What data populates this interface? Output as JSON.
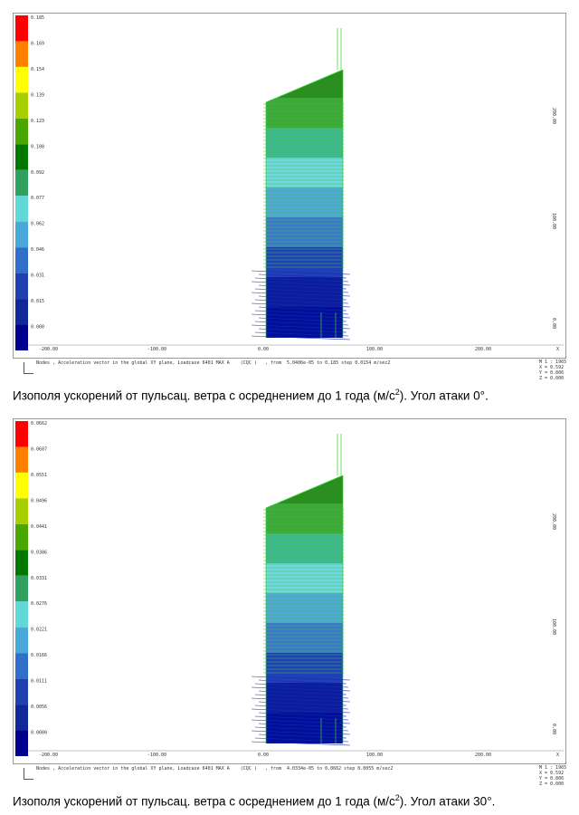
{
  "legend_colors": [
    "#ff0000",
    "#ff8000",
    "#ffff00",
    "#a8d000",
    "#48a800",
    "#007800",
    "#30a060",
    "#60d8d8",
    "#48a8d8",
    "#3070c8",
    "#2040b0",
    "#102898",
    "#000090"
  ],
  "figures": [
    {
      "legend": {
        "labels": [
          "0.185",
          "0.169",
          "0.154",
          "0.139",
          "0.123",
          "0.108",
          "0.092",
          "0.077",
          "0.062",
          "0.046",
          "0.031",
          "0.015",
          "0.000"
        ]
      },
      "x_axis_labels": [
        "-200.00",
        "-100.00",
        "0.00",
        "100.00",
        "200.00",
        "X"
      ],
      "y_axis_labels": [
        "200.00",
        "100.00",
        "0.00"
      ],
      "footer": "Nodes , Acceleration vector in the global XY plane, Loadcase 6401 MAX A    (CQC )   , from  5.0406e-05 to 0.185 step 0.0154 m/sec2",
      "scale": [
        "M 1 : 1965",
        "X = 0.592",
        "Y = 0.806",
        "Z = 0.000"
      ],
      "caption": {
        "before": "Изополя ускорений от пульсац. ветра с осреднением до 1 года (м/с",
        "sup": "2",
        "after": "). Угол атаки 0°."
      }
    },
    {
      "legend": {
        "labels": [
          "0.0662",
          "0.0607",
          "0.0551",
          "0.0496",
          "0.0441",
          "0.0386",
          "0.0331",
          "0.0276",
          "0.0221",
          "0.0166",
          "0.0111",
          "0.0056",
          "0.0000"
        ]
      },
      "x_axis_labels": [
        "-200.00",
        "-100.00",
        "0.00",
        "100.00",
        "200.00",
        "X"
      ],
      "y_axis_labels": [
        "200.00",
        "100.00",
        "0.00"
      ],
      "footer": "Nodes , Acceleration vector in the global XY plane, Loadcase 6401 MAX A    (CQC )   , from  4.0334e-05 to 0.0662 step 0.0055 m/sec2",
      "scale": [
        "M 1 : 1965",
        "X = 0.592",
        "Y = 0.806",
        "Z = 0.000"
      ],
      "caption": {
        "before": "Изополя ускорений от пульсац. ветра с осреднением до 1 года (м/с",
        "sup": "2",
        "after": "). Угол атаки 30°."
      }
    }
  ]
}
